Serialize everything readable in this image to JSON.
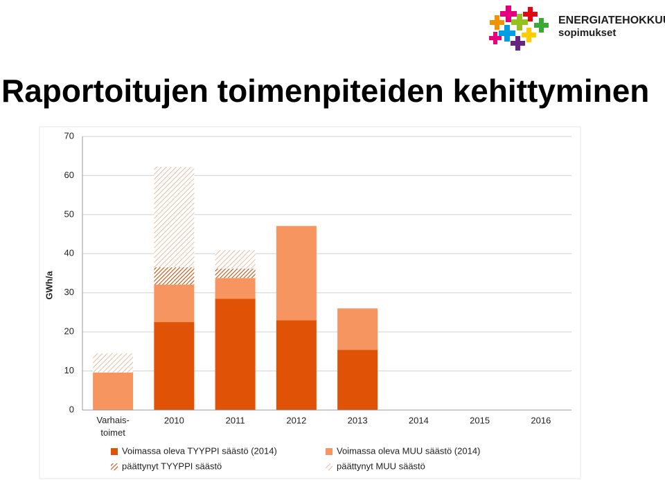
{
  "logo": {
    "line1": "ENERGIATEHOKKUUS-",
    "line2": "sopimukset"
  },
  "chart_data": {
    "type": "stacked-bar",
    "title": "Raportoitujen toimenpiteiden kehittyminen",
    "y_label": "GWh/a",
    "categories": [
      "Varhais-\ntoimet",
      "2010",
      "2011",
      "2012",
      "2013",
      "2014",
      "2015",
      "2016"
    ],
    "series": [
      {
        "name": "Voimassa oleva TYYPPI säästö (2014)",
        "color": "#e05206",
        "hatch": false,
        "values": [
          0,
          22.5,
          28.5,
          23.0,
          15.4,
          null,
          null,
          null
        ]
      },
      {
        "name": "Voimassa oleva MUU säästö (2014)",
        "color": "#f79560",
        "hatch": false,
        "values": [
          9.6,
          9.6,
          5.3,
          24.1,
          10.6,
          null,
          null,
          null
        ]
      },
      {
        "name": "päättynyt TYYPPI säästö",
        "color": "#c0500e",
        "hatch": true,
        "values": [
          0,
          4.4,
          2.4,
          0,
          0,
          null,
          null,
          null
        ]
      },
      {
        "name": "päättynyt MUU säästö",
        "color": "#d9a278",
        "hatch": true,
        "values": [
          4.9,
          25.7,
          4.7,
          0,
          0,
          null,
          null,
          null
        ]
      }
    ],
    "ylim": [
      0,
      70
    ],
    "yticks": [
      0,
      10,
      20,
      30,
      40,
      50,
      60,
      70
    ],
    "grid": true
  }
}
